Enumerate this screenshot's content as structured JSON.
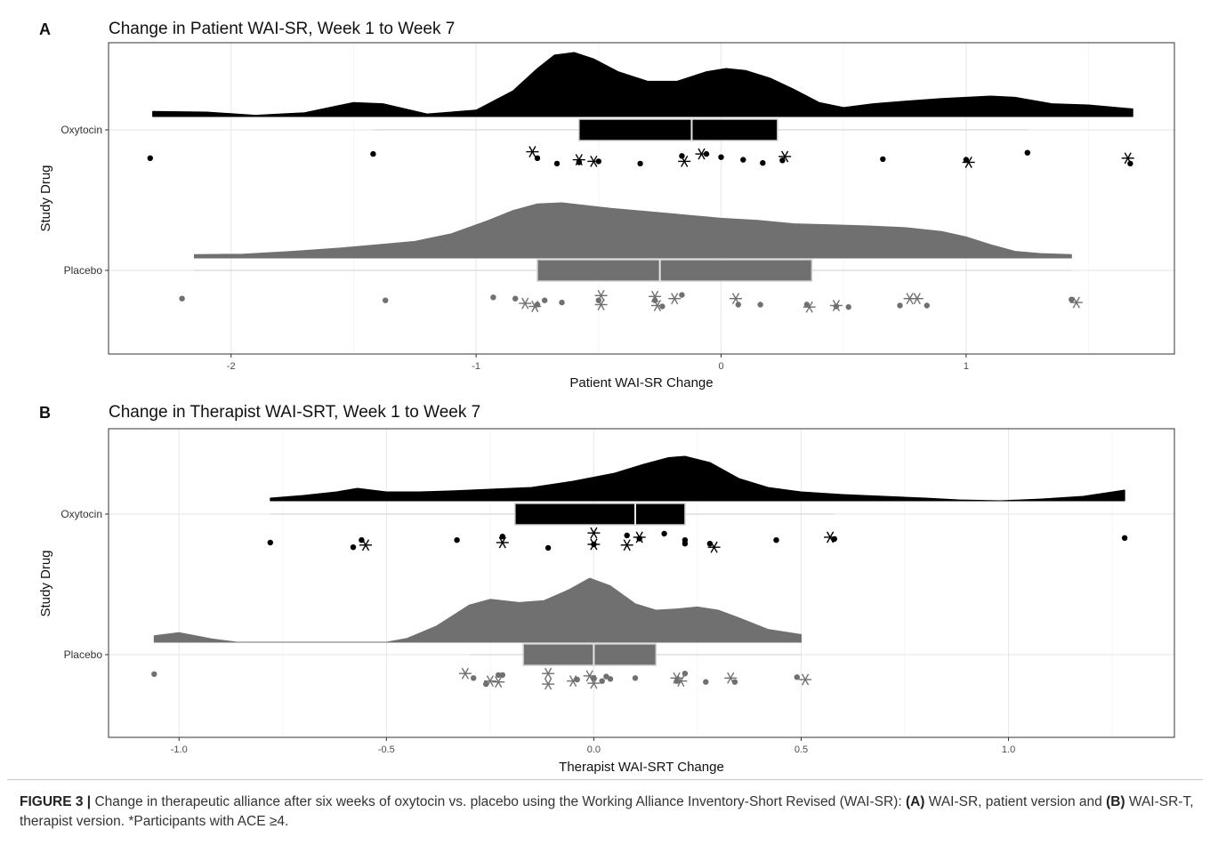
{
  "figure": {
    "caption": {
      "figure_label": "FIGURE 3 |",
      "text_1": " Change in therapeutic alliance after six weeks of oxytocin vs. placebo using the Working Alliance Inventory-Short Revised (WAI-SR): ",
      "label_a": "(A)",
      "text_2": " WAI-SR, patient version and ",
      "label_b": "(B)",
      "text_3": " WAI-SR-T, therapist version. *Participants with ACE ≥4."
    }
  },
  "colors": {
    "oxytocin": "#000000",
    "placebo": "#707070",
    "grid": "#ebebeb",
    "panel_border": "#333333"
  },
  "chart_data": [
    {
      "panel_label": "A",
      "type": "raincloud",
      "title": "Change in Patient WAI-SR, Week 1 to Week 7",
      "xlabel": "Patient WAI-SR Change",
      "ylabel": "Study Drug",
      "xlim": [
        -2.5,
        1.85
      ],
      "x_ticks": [
        -2,
        -1,
        0,
        1
      ],
      "x_tick_labels": [
        "-2",
        "-1",
        "0",
        "1"
      ],
      "categories": [
        "Oxytocin",
        "Placebo"
      ],
      "grid": true,
      "series": [
        {
          "name": "Oxytocin",
          "color": "#000000",
          "density": {
            "x": [
              -2.32,
              -2.1,
              -1.9,
              -1.7,
              -1.5,
              -1.38,
              -1.2,
              -1.0,
              -0.85,
              -0.75,
              -0.68,
              -0.6,
              -0.52,
              -0.42,
              -0.3,
              -0.18,
              -0.06,
              0.02,
              0.1,
              0.2,
              0.3,
              0.4,
              0.5,
              0.62,
              0.75,
              0.9,
              1.0,
              1.1,
              1.2,
              1.35,
              1.5,
              1.68
            ],
            "y": [
              0.08,
              0.07,
              0.02,
              0.06,
              0.22,
              0.2,
              0.04,
              0.1,
              0.4,
              0.75,
              0.96,
              1.0,
              0.9,
              0.7,
              0.55,
              0.55,
              0.7,
              0.75,
              0.72,
              0.6,
              0.42,
              0.22,
              0.14,
              0.2,
              0.24,
              0.28,
              0.3,
              0.32,
              0.3,
              0.2,
              0.18,
              0.12
            ]
          },
          "box": {
            "whisker_low": -1.42,
            "q1": -0.58,
            "median": -0.12,
            "q3": 0.23,
            "whisker_high": 1.25
          },
          "points": [
            {
              "x": -2.33,
              "jitter": 0.55,
              "ace": false
            },
            {
              "x": -1.42,
              "jitter": 0.42,
              "ace": false
            },
            {
              "x": -0.77,
              "jitter": 0.35,
              "ace": true
            },
            {
              "x": -0.75,
              "jitter": 0.55,
              "ace": false
            },
            {
              "x": -0.67,
              "jitter": 0.72,
              "ace": false
            },
            {
              "x": -0.58,
              "jitter": 0.6,
              "ace": true
            },
            {
              "x": -0.58,
              "jitter": 0.68,
              "ace": false
            },
            {
              "x": -0.52,
              "jitter": 0.65,
              "ace": true
            },
            {
              "x": -0.5,
              "jitter": 0.65,
              "ace": false
            },
            {
              "x": -0.33,
              "jitter": 0.72,
              "ace": false
            },
            {
              "x": -0.16,
              "jitter": 0.48,
              "ace": false
            },
            {
              "x": -0.15,
              "jitter": 0.65,
              "ace": true
            },
            {
              "x": -0.08,
              "jitter": 0.42,
              "ace": true
            },
            {
              "x": -0.06,
              "jitter": 0.42,
              "ace": false
            },
            {
              "x": 0.0,
              "jitter": 0.52,
              "ace": false
            },
            {
              "x": 0.09,
              "jitter": 0.6,
              "ace": false
            },
            {
              "x": 0.17,
              "jitter": 0.7,
              "ace": false
            },
            {
              "x": 0.25,
              "jitter": 0.62,
              "ace": false
            },
            {
              "x": 0.26,
              "jitter": 0.5,
              "ace": true
            },
            {
              "x": 0.66,
              "jitter": 0.58,
              "ace": false
            },
            {
              "x": 1.0,
              "jitter": 0.6,
              "ace": false
            },
            {
              "x": 1.01,
              "jitter": 0.68,
              "ace": true
            },
            {
              "x": 1.25,
              "jitter": 0.38,
              "ace": false
            },
            {
              "x": 1.66,
              "jitter": 0.55,
              "ace": true
            },
            {
              "x": 1.67,
              "jitter": 0.72,
              "ace": false
            }
          ]
        },
        {
          "name": "Placebo",
          "color": "#707070",
          "density": {
            "x": [
              -2.15,
              -1.95,
              -1.75,
              -1.55,
              -1.4,
              -1.25,
              -1.1,
              -0.95,
              -0.85,
              -0.75,
              -0.65,
              -0.55,
              -0.45,
              -0.3,
              -0.15,
              0.0,
              0.15,
              0.3,
              0.45,
              0.6,
              0.75,
              0.9,
              1.0,
              1.1,
              1.2,
              1.3,
              1.43
            ],
            "y": [
              0.06,
              0.07,
              0.12,
              0.18,
              0.24,
              0.3,
              0.44,
              0.68,
              0.86,
              0.98,
              1.0,
              0.95,
              0.9,
              0.84,
              0.78,
              0.72,
              0.68,
              0.62,
              0.6,
              0.58,
              0.55,
              0.48,
              0.38,
              0.24,
              0.12,
              0.08,
              0.06
            ]
          },
          "box": {
            "whisker_low": -2.15,
            "q1": -0.75,
            "median": -0.25,
            "q3": 0.37,
            "whisker_high": 1.43
          },
          "points": [
            {
              "x": -2.2,
              "jitter": 0.52,
              "ace": false
            },
            {
              "x": -1.37,
              "jitter": 0.58,
              "ace": false
            },
            {
              "x": -0.93,
              "jitter": 0.48,
              "ace": false
            },
            {
              "x": -0.84,
              "jitter": 0.52,
              "ace": false
            },
            {
              "x": -0.8,
              "jitter": 0.68,
              "ace": true
            },
            {
              "x": -0.76,
              "jitter": 0.78,
              "ace": true
            },
            {
              "x": -0.75,
              "jitter": 0.72,
              "ace": false
            },
            {
              "x": -0.72,
              "jitter": 0.58,
              "ace": false
            },
            {
              "x": -0.65,
              "jitter": 0.65,
              "ace": false
            },
            {
              "x": -0.49,
              "jitter": 0.42,
              "ace": true
            },
            {
              "x": -0.5,
              "jitter": 0.58,
              "ace": false
            },
            {
              "x": -0.49,
              "jitter": 0.72,
              "ace": true
            },
            {
              "x": -0.27,
              "jitter": 0.45,
              "ace": true
            },
            {
              "x": -0.27,
              "jitter": 0.58,
              "ace": false
            },
            {
              "x": -0.26,
              "jitter": 0.75,
              "ace": true
            },
            {
              "x": -0.24,
              "jitter": 0.78,
              "ace": false
            },
            {
              "x": -0.19,
              "jitter": 0.52,
              "ace": true
            },
            {
              "x": -0.16,
              "jitter": 0.4,
              "ace": false
            },
            {
              "x": 0.06,
              "jitter": 0.52,
              "ace": true
            },
            {
              "x": 0.07,
              "jitter": 0.72,
              "ace": false
            },
            {
              "x": 0.16,
              "jitter": 0.72,
              "ace": false
            },
            {
              "x": 0.36,
              "jitter": 0.8,
              "ace": true
            },
            {
              "x": 0.35,
              "jitter": 0.72,
              "ace": false
            },
            {
              "x": 0.47,
              "jitter": 0.75,
              "ace": true
            },
            {
              "x": 0.47,
              "jitter": 0.78,
              "ace": false
            },
            {
              "x": 0.52,
              "jitter": 0.8,
              "ace": false
            },
            {
              "x": 0.73,
              "jitter": 0.75,
              "ace": false
            },
            {
              "x": 0.77,
              "jitter": 0.52,
              "ace": true
            },
            {
              "x": 0.8,
              "jitter": 0.52,
              "ace": true
            },
            {
              "x": 0.84,
              "jitter": 0.75,
              "ace": false
            },
            {
              "x": 1.43,
              "jitter": 0.55,
              "ace": false
            },
            {
              "x": 1.45,
              "jitter": 0.65,
              "ace": true
            }
          ]
        }
      ]
    },
    {
      "panel_label": "B",
      "type": "raincloud",
      "title": "Change in Therapist WAI-SRT, Week 1 to Week 7",
      "xlabel": "Therapist WAI-SRT Change",
      "ylabel": "Study Drug",
      "xlim": [
        -1.17,
        1.4
      ],
      "x_ticks": [
        -1.0,
        -0.5,
        0.0,
        0.5,
        1.0
      ],
      "x_tick_labels": [
        "-1.0",
        "-0.5",
        "0.0",
        "0.5",
        "1.0"
      ],
      "categories": [
        "Oxytocin",
        "Placebo"
      ],
      "grid": true,
      "series": [
        {
          "name": "Oxytocin",
          "color": "#000000",
          "density": {
            "x": [
              -0.78,
              -0.7,
              -0.62,
              -0.57,
              -0.5,
              -0.42,
              -0.35,
              -0.25,
              -0.15,
              -0.05,
              0.05,
              0.12,
              0.18,
              0.22,
              0.28,
              0.35,
              0.42,
              0.5,
              0.6,
              0.7,
              0.8,
              0.88,
              0.98,
              1.08,
              1.18,
              1.28
            ],
            "y": [
              0.06,
              0.12,
              0.2,
              0.28,
              0.2,
              0.2,
              0.22,
              0.26,
              0.3,
              0.44,
              0.62,
              0.82,
              0.97,
              1.0,
              0.86,
              0.5,
              0.3,
              0.2,
              0.14,
              0.1,
              0.06,
              0.02,
              0.0,
              0.04,
              0.1,
              0.24
            ]
          },
          "box": {
            "whisker_low": -0.78,
            "q1": -0.19,
            "median": 0.1,
            "q3": 0.22,
            "whisker_high": 0.58
          },
          "points": [
            {
              "x": -0.78,
              "jitter": 0.55,
              "ace": false
            },
            {
              "x": -0.58,
              "jitter": 0.68,
              "ace": false
            },
            {
              "x": -0.56,
              "jitter": 0.48,
              "ace": false
            },
            {
              "x": -0.55,
              "jitter": 0.62,
              "ace": true
            },
            {
              "x": -0.33,
              "jitter": 0.48,
              "ace": false
            },
            {
              "x": -0.22,
              "jitter": 0.38,
              "ace": false
            },
            {
              "x": -0.22,
              "jitter": 0.55,
              "ace": true
            },
            {
              "x": -0.11,
              "jitter": 0.7,
              "ace": false
            },
            {
              "x": 0.0,
              "jitter": 0.28,
              "ace": true
            },
            {
              "x": 0.0,
              "jitter": 0.6,
              "ace": true
            },
            {
              "x": 0.0,
              "jitter": 0.6,
              "ace": false
            },
            {
              "x": 0.08,
              "jitter": 0.35,
              "ace": false
            },
            {
              "x": 0.08,
              "jitter": 0.62,
              "ace": true
            },
            {
              "x": 0.11,
              "jitter": 0.4,
              "ace": true
            },
            {
              "x": 0.11,
              "jitter": 0.44,
              "ace": false
            },
            {
              "x": 0.17,
              "jitter": 0.3,
              "ace": false
            },
            {
              "x": 0.22,
              "jitter": 0.48,
              "ace": false
            },
            {
              "x": 0.22,
              "jitter": 0.58,
              "ace": false
            },
            {
              "x": 0.28,
              "jitter": 0.58,
              "ace": false
            },
            {
              "x": 0.29,
              "jitter": 0.68,
              "ace": true
            },
            {
              "x": 0.44,
              "jitter": 0.48,
              "ace": false
            },
            {
              "x": 0.57,
              "jitter": 0.4,
              "ace": true
            },
            {
              "x": 0.58,
              "jitter": 0.45,
              "ace": false
            },
            {
              "x": 1.28,
              "jitter": 0.42,
              "ace": false
            }
          ]
        },
        {
          "name": "Placebo",
          "color": "#707070",
          "density": {
            "x": [
              -1.06,
              -1.0,
              -0.92,
              -0.86,
              -0.5,
              -0.45,
              -0.38,
              -0.3,
              -0.25,
              -0.18,
              -0.12,
              -0.06,
              -0.01,
              0.04,
              0.1,
              0.15,
              0.2,
              0.25,
              0.3,
              0.35,
              0.42,
              0.5
            ],
            "y": [
              0.1,
              0.15,
              0.05,
              0.0,
              0.0,
              0.06,
              0.25,
              0.58,
              0.67,
              0.62,
              0.65,
              0.82,
              1.0,
              0.88,
              0.6,
              0.5,
              0.52,
              0.55,
              0.5,
              0.38,
              0.2,
              0.12
            ]
          },
          "box": {
            "whisker_low": -0.3,
            "q1": -0.17,
            "median": 0.0,
            "q3": 0.15,
            "whisker_high": 0.5
          },
          "points": [
            {
              "x": -1.06,
              "jitter": 0.32,
              "ace": false
            },
            {
              "x": -0.31,
              "jitter": 0.3,
              "ace": true
            },
            {
              "x": -0.29,
              "jitter": 0.45,
              "ace": false
            },
            {
              "x": -0.26,
              "jitter": 0.65,
              "ace": false
            },
            {
              "x": -0.25,
              "jitter": 0.55,
              "ace": true
            },
            {
              "x": -0.23,
              "jitter": 0.35,
              "ace": false
            },
            {
              "x": -0.23,
              "jitter": 0.58,
              "ace": true
            },
            {
              "x": -0.22,
              "jitter": 0.35,
              "ace": false
            },
            {
              "x": -0.11,
              "jitter": 0.3,
              "ace": true
            },
            {
              "x": -0.11,
              "jitter": 0.65,
              "ace": true
            },
            {
              "x": -0.05,
              "jitter": 0.55,
              "ace": true
            },
            {
              "x": -0.04,
              "jitter": 0.5,
              "ace": false
            },
            {
              "x": -0.01,
              "jitter": 0.38,
              "ace": true
            },
            {
              "x": 0.0,
              "jitter": 0.45,
              "ace": false
            },
            {
              "x": 0.0,
              "jitter": 0.62,
              "ace": true
            },
            {
              "x": 0.02,
              "jitter": 0.55,
              "ace": false
            },
            {
              "x": 0.03,
              "jitter": 0.4,
              "ace": false
            },
            {
              "x": 0.04,
              "jitter": 0.48,
              "ace": false
            },
            {
              "x": 0.1,
              "jitter": 0.45,
              "ace": false
            },
            {
              "x": 0.2,
              "jitter": 0.45,
              "ace": true
            },
            {
              "x": 0.2,
              "jitter": 0.55,
              "ace": false
            },
            {
              "x": 0.21,
              "jitter": 0.55,
              "ace": true
            },
            {
              "x": 0.22,
              "jitter": 0.3,
              "ace": false
            },
            {
              "x": 0.27,
              "jitter": 0.58,
              "ace": false
            },
            {
              "x": 0.33,
              "jitter": 0.45,
              "ace": true
            },
            {
              "x": 0.34,
              "jitter": 0.58,
              "ace": false
            },
            {
              "x": 0.49,
              "jitter": 0.42,
              "ace": false
            },
            {
              "x": 0.51,
              "jitter": 0.5,
              "ace": true
            }
          ]
        }
      ]
    }
  ]
}
